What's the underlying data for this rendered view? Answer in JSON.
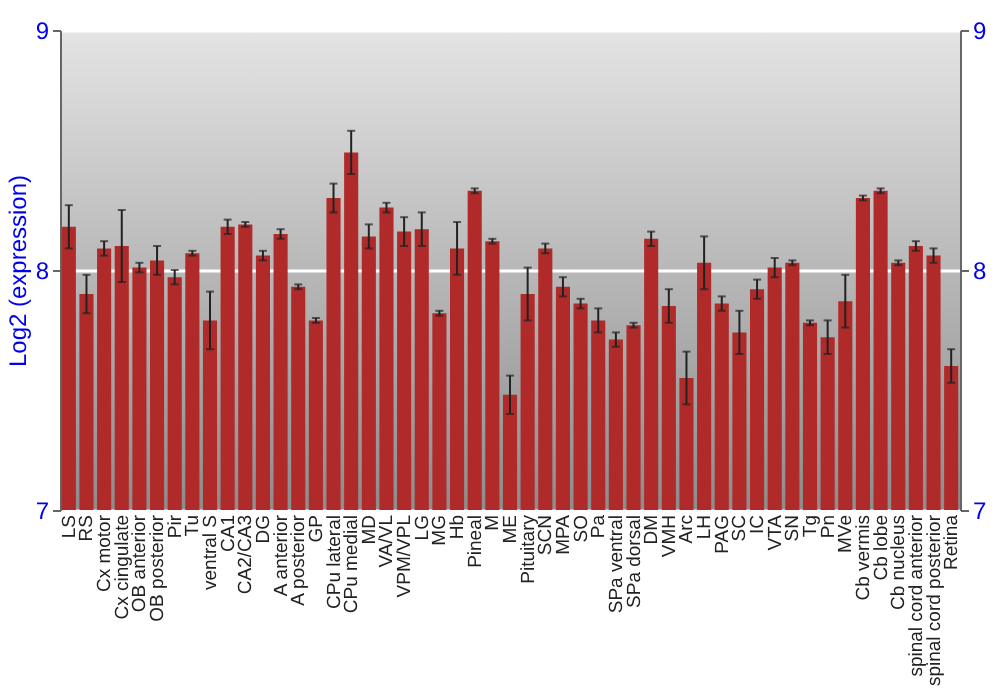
{
  "chart_data": {
    "type": "bar",
    "ylabel": "Log2 (expression)",
    "categories": [
      "LS",
      "RS",
      "Cx motor",
      "Cx cingulate",
      "OB anterior",
      "OB posterior",
      "Pir",
      "Tu",
      "ventral S",
      "CA1",
      "CA2/CA3",
      "DG",
      "A anterior",
      "A posterior",
      "GP",
      "CPu lateral",
      "CPu medial",
      "MD",
      "VA/VL",
      "VPM/VPL",
      "LG",
      "MG",
      "Hb",
      "Pineal",
      "M",
      "ME",
      "Pituitary",
      "SCN",
      "MPA",
      "SO",
      "Pa",
      "SPa ventral",
      "SPa dorsal",
      "DM",
      "VMH",
      "Arc",
      "LH",
      "PAG",
      "SC",
      "IC",
      "VTA",
      "SN",
      "Tg",
      "Pn",
      "MVe",
      "Cb vermis",
      "Cb lobe",
      "Cb nucleus",
      "spinal cord anterior",
      "spinal cord posterior",
      "Retina"
    ],
    "series": [
      {
        "color": "#b02a2a",
        "values": [
          8.18,
          7.9,
          8.09,
          8.1,
          8.01,
          8.04,
          7.97,
          8.07,
          7.79,
          8.18,
          8.19,
          8.06,
          8.15,
          7.93,
          7.79,
          8.3,
          8.49,
          8.14,
          8.26,
          8.16,
          8.17,
          7.82,
          8.09,
          8.33,
          8.12,
          7.48,
          7.9,
          8.09,
          7.93,
          7.86,
          7.79,
          7.71,
          7.77,
          8.13,
          7.85,
          7.55,
          8.03,
          7.86,
          7.74,
          7.92,
          8.01,
          8.03,
          7.78,
          7.72,
          7.87,
          8.3,
          8.33,
          8.03,
          8.1,
          8.06,
          7.6
        ],
        "errors": [
          0.09,
          0.08,
          0.03,
          0.15,
          0.02,
          0.06,
          0.03,
          0.01,
          0.12,
          0.03,
          0.01,
          0.02,
          0.02,
          0.01,
          0.01,
          0.06,
          0.09,
          0.05,
          0.02,
          0.06,
          0.07,
          0.01,
          0.11,
          0.01,
          0.01,
          0.08,
          0.11,
          0.02,
          0.04,
          0.02,
          0.05,
          0.03,
          0.01,
          0.03,
          0.07,
          0.11,
          0.11,
          0.03,
          0.09,
          0.04,
          0.04,
          0.01,
          0.01,
          0.07,
          0.11,
          0.01,
          0.01,
          0.01,
          0.02,
          0.03,
          0.07
        ]
      }
    ],
    "ylim": [
      7,
      9
    ],
    "yticks": [
      7,
      8,
      9
    ],
    "y2lim": [
      7,
      9
    ],
    "y2ticks": [
      7,
      8,
      9
    ],
    "grid": true
  }
}
